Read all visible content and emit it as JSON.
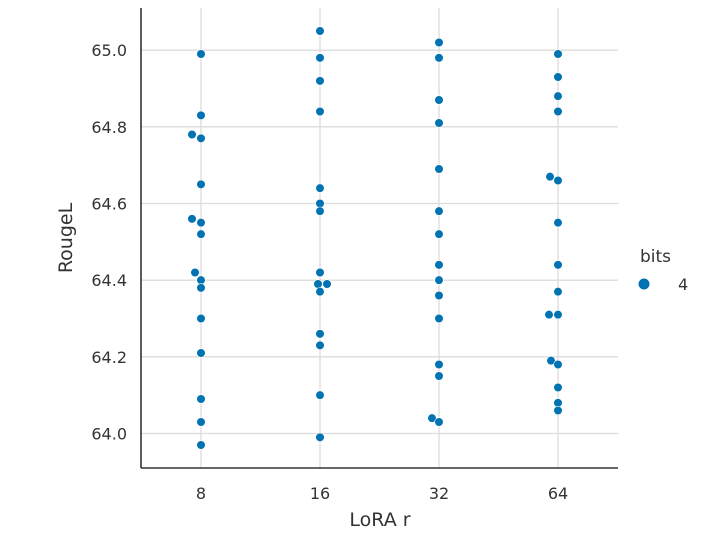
{
  "chart_data": {
    "type": "scatter",
    "style": "stripplot",
    "xlabel": "LoRA r",
    "ylabel": "RougeL",
    "categories": [
      "8",
      "16",
      "32",
      "64"
    ],
    "y_ticks": [
      "64.0",
      "64.2",
      "64.4",
      "64.6",
      "64.8",
      "65.0"
    ],
    "ylim": [
      63.91,
      65.11
    ],
    "grid": true,
    "legend": {
      "title": "bits",
      "placement": "right",
      "entries": [
        {
          "label": "4",
          "color": "#0173b2"
        }
      ]
    },
    "series": [
      {
        "name": "4",
        "color": "#0173b2",
        "points": [
          {
            "x": "8",
            "y": 64.99
          },
          {
            "x": "8",
            "y": 64.83
          },
          {
            "x": "8",
            "y": 64.78
          },
          {
            "x": "8",
            "y": 64.77
          },
          {
            "x": "8",
            "y": 64.65
          },
          {
            "x": "8",
            "y": 64.56
          },
          {
            "x": "8",
            "y": 64.55
          },
          {
            "x": "8",
            "y": 64.52
          },
          {
            "x": "8",
            "y": 64.42
          },
          {
            "x": "8",
            "y": 64.4
          },
          {
            "x": "8",
            "y": 64.38
          },
          {
            "x": "8",
            "y": 64.3
          },
          {
            "x": "8",
            "y": 64.21
          },
          {
            "x": "8",
            "y": 64.09
          },
          {
            "x": "8",
            "y": 64.03
          },
          {
            "x": "8",
            "y": 63.97
          },
          {
            "x": "16",
            "y": 65.05
          },
          {
            "x": "16",
            "y": 64.98
          },
          {
            "x": "16",
            "y": 64.92
          },
          {
            "x": "16",
            "y": 64.84
          },
          {
            "x": "16",
            "y": 64.64
          },
          {
            "x": "16",
            "y": 64.6
          },
          {
            "x": "16",
            "y": 64.58
          },
          {
            "x": "16",
            "y": 64.42
          },
          {
            "x": "16",
            "y": 64.39
          },
          {
            "x": "16",
            "y": 64.39
          },
          {
            "x": "16",
            "y": 64.37
          },
          {
            "x": "16",
            "y": 64.26
          },
          {
            "x": "16",
            "y": 64.23
          },
          {
            "x": "16",
            "y": 64.1
          },
          {
            "x": "16",
            "y": 63.99
          },
          {
            "x": "32",
            "y": 65.02
          },
          {
            "x": "32",
            "y": 64.98
          },
          {
            "x": "32",
            "y": 64.87
          },
          {
            "x": "32",
            "y": 64.81
          },
          {
            "x": "32",
            "y": 64.69
          },
          {
            "x": "32",
            "y": 64.58
          },
          {
            "x": "32",
            "y": 64.52
          },
          {
            "x": "32",
            "y": 64.44
          },
          {
            "x": "32",
            "y": 64.4
          },
          {
            "x": "32",
            "y": 64.36
          },
          {
            "x": "32",
            "y": 64.3
          },
          {
            "x": "32",
            "y": 64.18
          },
          {
            "x": "32",
            "y": 64.15
          },
          {
            "x": "32",
            "y": 64.04
          },
          {
            "x": "32",
            "y": 64.03
          },
          {
            "x": "64",
            "y": 64.99
          },
          {
            "x": "64",
            "y": 64.93
          },
          {
            "x": "64",
            "y": 64.88
          },
          {
            "x": "64",
            "y": 64.84
          },
          {
            "x": "64",
            "y": 64.67
          },
          {
            "x": "64",
            "y": 64.66
          },
          {
            "x": "64",
            "y": 64.55
          },
          {
            "x": "64",
            "y": 64.44
          },
          {
            "x": "64",
            "y": 64.37
          },
          {
            "x": "64",
            "y": 64.31
          },
          {
            "x": "64",
            "y": 64.31
          },
          {
            "x": "64",
            "y": 64.19
          },
          {
            "x": "64",
            "y": 64.18
          },
          {
            "x": "64",
            "y": 64.12
          },
          {
            "x": "64",
            "y": 64.08
          },
          {
            "x": "64",
            "y": 64.06
          }
        ]
      }
    ]
  }
}
